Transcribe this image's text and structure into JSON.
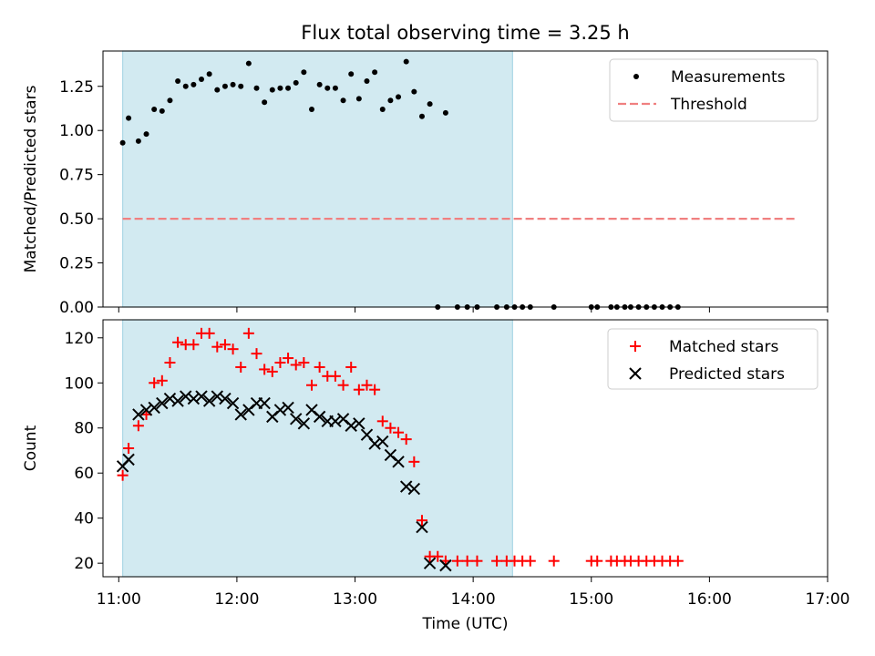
{
  "colors": {
    "shade": "#add8e6",
    "measurement": "#000000",
    "threshold": "#f08080",
    "matched": "#ff0000",
    "predicted": "#000000"
  },
  "chart_data": [
    {
      "type": "scatter",
      "title": "Flux total observing time = 3.25 h",
      "ylabel": "Matched/Predicted stars",
      "xlim": [
        "10:52",
        "17:00"
      ],
      "ylim": [
        0,
        1.45
      ],
      "yticks": [
        "0.00",
        "0.25",
        "0.50",
        "0.75",
        "1.00",
        "1.25"
      ],
      "shaded_interval": [
        "11:02",
        "14:20"
      ],
      "legend_position": "upper right",
      "threshold": {
        "name": "Threshold",
        "value": 0.5,
        "x": [
          "11:02",
          "16:45"
        ],
        "style": "dashed"
      },
      "series": [
        {
          "name": "Measurements",
          "marker": "dot",
          "points": [
            [
              "11:02",
              0.93
            ],
            [
              "11:05",
              1.07
            ],
            [
              "11:10",
              0.94
            ],
            [
              "11:14",
              0.98
            ],
            [
              "11:18",
              1.12
            ],
            [
              "11:22",
              1.11
            ],
            [
              "11:26",
              1.17
            ],
            [
              "11:30",
              1.28
            ],
            [
              "11:34",
              1.25
            ],
            [
              "11:38",
              1.26
            ],
            [
              "11:42",
              1.29
            ],
            [
              "11:46",
              1.32
            ],
            [
              "11:50",
              1.23
            ],
            [
              "11:54",
              1.25
            ],
            [
              "11:58",
              1.26
            ],
            [
              "12:02",
              1.25
            ],
            [
              "12:06",
              1.38
            ],
            [
              "12:10",
              1.24
            ],
            [
              "12:14",
              1.16
            ],
            [
              "12:18",
              1.23
            ],
            [
              "12:22",
              1.24
            ],
            [
              "12:26",
              1.24
            ],
            [
              "12:30",
              1.27
            ],
            [
              "12:34",
              1.33
            ],
            [
              "12:38",
              1.12
            ],
            [
              "12:42",
              1.26
            ],
            [
              "12:46",
              1.24
            ],
            [
              "12:50",
              1.24
            ],
            [
              "12:54",
              1.17
            ],
            [
              "12:58",
              1.32
            ],
            [
              "13:02",
              1.18
            ],
            [
              "13:06",
              1.28
            ],
            [
              "13:10",
              1.33
            ],
            [
              "13:14",
              1.12
            ],
            [
              "13:18",
              1.17
            ],
            [
              "13:22",
              1.19
            ],
            [
              "13:26",
              1.39
            ],
            [
              "13:30",
              1.22
            ],
            [
              "13:34",
              1.08
            ],
            [
              "13:38",
              1.15
            ],
            [
              "13:46",
              1.1
            ],
            [
              "13:42",
              0.0
            ],
            [
              "13:52",
              0.0
            ],
            [
              "13:57",
              0.0
            ],
            [
              "14:02",
              0.0
            ],
            [
              "14:12",
              0.0
            ],
            [
              "14:17",
              0.0
            ],
            [
              "14:21",
              0.0
            ],
            [
              "14:25",
              0.0
            ],
            [
              "14:29",
              0.0
            ],
            [
              "14:41",
              0.0
            ],
            [
              "15:00",
              0.0
            ],
            [
              "15:03",
              0.0
            ],
            [
              "15:10",
              0.0
            ],
            [
              "15:13",
              0.0
            ],
            [
              "15:17",
              0.0
            ],
            [
              "15:20",
              0.0
            ],
            [
              "15:24",
              0.0
            ],
            [
              "15:28",
              0.0
            ],
            [
              "15:32",
              0.0
            ],
            [
              "15:36",
              0.0
            ],
            [
              "15:40",
              0.0
            ],
            [
              "15:44",
              0.0
            ]
          ]
        }
      ]
    },
    {
      "type": "scatter",
      "xlabel": "Time (UTC)",
      "ylabel": "Count",
      "xlim": [
        "10:52",
        "17:00"
      ],
      "ylim": [
        14,
        128
      ],
      "yticks": [
        "20",
        "40",
        "60",
        "80",
        "100",
        "120"
      ],
      "xticks": [
        "11:00",
        "12:00",
        "13:00",
        "14:00",
        "15:00",
        "16:00",
        "17:00"
      ],
      "shaded_interval": [
        "11:02",
        "14:20"
      ],
      "legend_position": "upper right",
      "series": [
        {
          "name": "Matched stars",
          "marker": "plus",
          "points": [
            [
              "11:02",
              59
            ],
            [
              "11:05",
              71
            ],
            [
              "11:10",
              81
            ],
            [
              "11:14",
              86
            ],
            [
              "11:18",
              100
            ],
            [
              "11:22",
              101
            ],
            [
              "11:26",
              109
            ],
            [
              "11:30",
              118
            ],
            [
              "11:34",
              117
            ],
            [
              "11:38",
              117
            ],
            [
              "11:42",
              122
            ],
            [
              "11:46",
              122
            ],
            [
              "11:50",
              116
            ],
            [
              "11:54",
              117
            ],
            [
              "11:58",
              115
            ],
            [
              "12:02",
              107
            ],
            [
              "12:06",
              122
            ],
            [
              "12:10",
              113
            ],
            [
              "12:14",
              106
            ],
            [
              "12:18",
              105
            ],
            [
              "12:22",
              109
            ],
            [
              "12:26",
              111
            ],
            [
              "12:30",
              108
            ],
            [
              "12:34",
              109
            ],
            [
              "12:38",
              99
            ],
            [
              "12:42",
              107
            ],
            [
              "12:46",
              103
            ],
            [
              "12:50",
              103
            ],
            [
              "12:54",
              99
            ],
            [
              "12:58",
              107
            ],
            [
              "13:02",
              97
            ],
            [
              "13:06",
              99
            ],
            [
              "13:10",
              97
            ],
            [
              "13:14",
              83
            ],
            [
              "13:18",
              80
            ],
            [
              "13:22",
              78
            ],
            [
              "13:26",
              75
            ],
            [
              "13:30",
              65
            ],
            [
              "13:34",
              39
            ],
            [
              "13:38",
              23
            ],
            [
              "13:42",
              23
            ],
            [
              "13:46",
              21
            ],
            [
              "13:52",
              21
            ],
            [
              "13:57",
              21
            ],
            [
              "14:02",
              21
            ],
            [
              "14:12",
              21
            ],
            [
              "14:17",
              21
            ],
            [
              "14:21",
              21
            ],
            [
              "14:25",
              21
            ],
            [
              "14:29",
              21
            ],
            [
              "14:41",
              21
            ],
            [
              "15:00",
              21
            ],
            [
              "15:03",
              21
            ],
            [
              "15:10",
              21
            ],
            [
              "15:13",
              21
            ],
            [
              "15:17",
              21
            ],
            [
              "15:20",
              21
            ],
            [
              "15:24",
              21
            ],
            [
              "15:28",
              21
            ],
            [
              "15:32",
              21
            ],
            [
              "15:36",
              21
            ],
            [
              "15:40",
              21
            ],
            [
              "15:44",
              21
            ]
          ]
        },
        {
          "name": "Predicted stars",
          "marker": "x",
          "points": [
            [
              "11:02",
              63
            ],
            [
              "11:05",
              66
            ],
            [
              "11:10",
              86
            ],
            [
              "11:14",
              88
            ],
            [
              "11:18",
              89
            ],
            [
              "11:22",
              91
            ],
            [
              "11:26",
              93
            ],
            [
              "11:30",
              92
            ],
            [
              "11:34",
              94
            ],
            [
              "11:38",
              93
            ],
            [
              "11:42",
              94
            ],
            [
              "11:46",
              92
            ],
            [
              "11:50",
              94
            ],
            [
              "11:54",
              93
            ],
            [
              "11:58",
              91
            ],
            [
              "12:02",
              86
            ],
            [
              "12:06",
              88
            ],
            [
              "12:10",
              91
            ],
            [
              "12:14",
              91
            ],
            [
              "12:18",
              85
            ],
            [
              "12:22",
              88
            ],
            [
              "12:26",
              89
            ],
            [
              "12:30",
              84
            ],
            [
              "12:34",
              82
            ],
            [
              "12:38",
              88
            ],
            [
              "12:42",
              85
            ],
            [
              "12:46",
              83
            ],
            [
              "12:50",
              83
            ],
            [
              "12:54",
              84
            ],
            [
              "12:58",
              81
            ],
            [
              "13:02",
              82
            ],
            [
              "13:06",
              77
            ],
            [
              "13:10",
              73
            ],
            [
              "13:14",
              74
            ],
            [
              "13:18",
              68
            ],
            [
              "13:22",
              65
            ],
            [
              "13:26",
              54
            ],
            [
              "13:30",
              53
            ],
            [
              "13:34",
              36
            ],
            [
              "13:38",
              20
            ],
            [
              "13:46",
              19
            ]
          ]
        }
      ]
    }
  ]
}
